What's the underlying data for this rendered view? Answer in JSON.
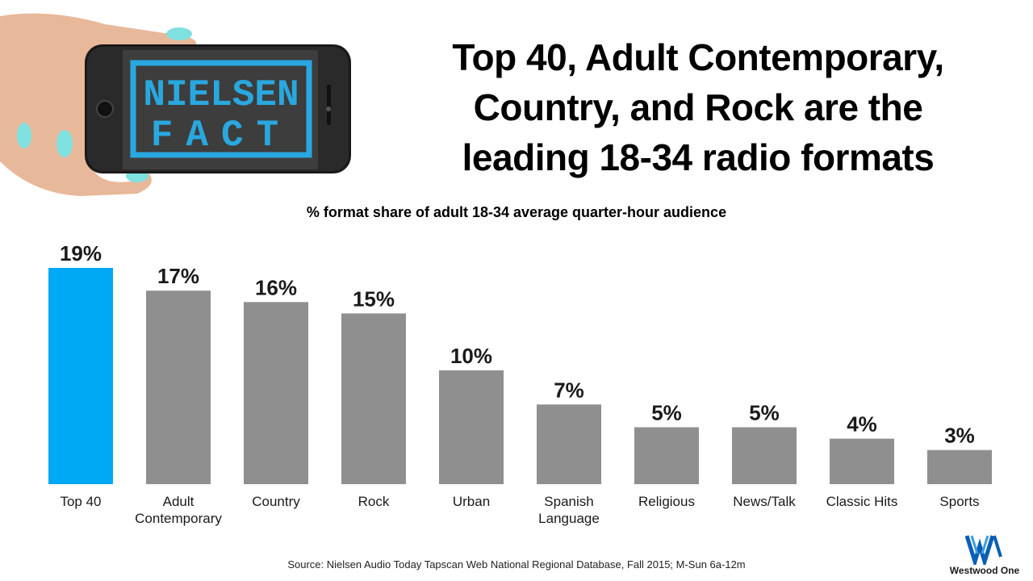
{
  "phone": {
    "badge_line1": "NIELSEN",
    "badge_line2": "FACT"
  },
  "headline": {
    "line1": "Top 40, Adult Contemporary,",
    "line2": "Country, and Rock are the",
    "line3": "leading 18-34 radio formats"
  },
  "colors": {
    "highlight_bar": "#00a9f4",
    "other_bars": "#8f8f8f",
    "badge": "#29a8e0"
  },
  "chart_data": {
    "type": "bar",
    "title": "% format share of adult 18-34 average quarter-hour audience",
    "categories": [
      [
        "Top 40"
      ],
      [
        "Adult",
        "Contemporary"
      ],
      [
        "Country"
      ],
      [
        "Rock"
      ],
      [
        "Urban"
      ],
      [
        "Spanish",
        "Language"
      ],
      [
        "Religious"
      ],
      [
        "News/Talk"
      ],
      [
        "Classic Hits"
      ],
      [
        "Sports"
      ]
    ],
    "values": [
      19,
      17,
      16,
      15,
      10,
      7,
      5,
      5,
      4,
      3
    ],
    "value_labels": [
      "19%",
      "17%",
      "16%",
      "15%",
      "10%",
      "7%",
      "5%",
      "5%",
      "4%",
      "3%"
    ],
    "highlight_index": 0,
    "ylim": [
      0,
      19
    ],
    "grid": false,
    "legend": "none"
  },
  "source": "Source: Nielsen Audio Today Tapscan Web National Regional Database, Fall 2015; M-Sun  6a-12m",
  "logo": {
    "name": "westwood-one-logo",
    "text": "Westwood One"
  }
}
